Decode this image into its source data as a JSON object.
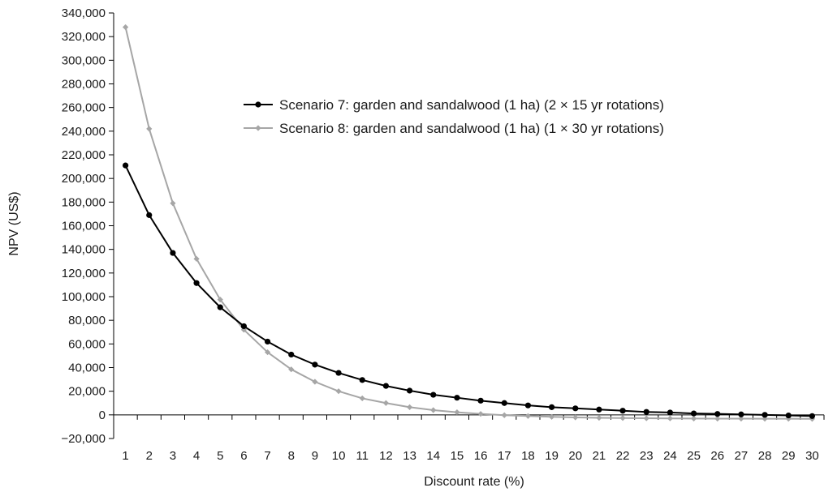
{
  "chart_data": {
    "type": "line",
    "xlabel": "Discount rate (%)",
    "ylabel": "NPV (US$)",
    "ylim": [
      -20000,
      340000
    ],
    "y_ticks": [
      -20000,
      0,
      20000,
      40000,
      60000,
      80000,
      100000,
      120000,
      140000,
      160000,
      180000,
      200000,
      220000,
      240000,
      260000,
      280000,
      300000,
      320000,
      340000
    ],
    "y_tick_labels": [
      "−20,000",
      "0",
      "20,000",
      "40,000",
      "60,000",
      "80,000",
      "100,000",
      "120,000",
      "140,000",
      "160,000",
      "180,000",
      "200,000",
      "220,000",
      "240,000",
      "260,000",
      "280,000",
      "300,000",
      "320,000",
      "340,000"
    ],
    "x": [
      1,
      2,
      3,
      4,
      5,
      6,
      7,
      8,
      9,
      10,
      11,
      12,
      13,
      14,
      15,
      16,
      17,
      18,
      19,
      20,
      21,
      22,
      23,
      24,
      25,
      26,
      27,
      28,
      29,
      30
    ],
    "x_tick_labels": [
      "1",
      "2",
      "3",
      "4",
      "5",
      "6",
      "7",
      "8",
      "9",
      "10",
      "11",
      "12",
      "13",
      "14",
      "15",
      "16",
      "17",
      "18",
      "19",
      "20",
      "21",
      "22",
      "23",
      "24",
      "25",
      "26",
      "27",
      "28",
      "29",
      "30"
    ],
    "grid": false,
    "legend_position": "top-right",
    "series": [
      {
        "name": "Scenario 7: garden and sandalwood (1 ha) (2 × 15 yr rotations)",
        "color": "#000000",
        "marker": "circle",
        "values": [
          211000,
          169000,
          137000,
          111500,
          91000,
          75000,
          62000,
          51000,
          42500,
          35500,
          29500,
          24500,
          20500,
          17000,
          14500,
          12000,
          10000,
          8000,
          6500,
          5500,
          4500,
          3500,
          2500,
          2000,
          1200,
          800,
          400,
          0,
          -500,
          -1000
        ]
      },
      {
        "name": "Scenario 8: garden and sandalwood (1 ha) (1 × 30 yr rotations)",
        "color": "#a6a6a6",
        "marker": "diamond",
        "values": [
          328000,
          242000,
          179000,
          132000,
          97500,
          72000,
          53000,
          38500,
          28000,
          20000,
          14000,
          10000,
          6500,
          4000,
          2200,
          800,
          -300,
          -1000,
          -1700,
          -2200,
          -2500,
          -2700,
          -2900,
          -3000,
          -3100,
          -3200,
          -3200,
          -3300,
          -3300,
          -3400
        ]
      }
    ]
  }
}
